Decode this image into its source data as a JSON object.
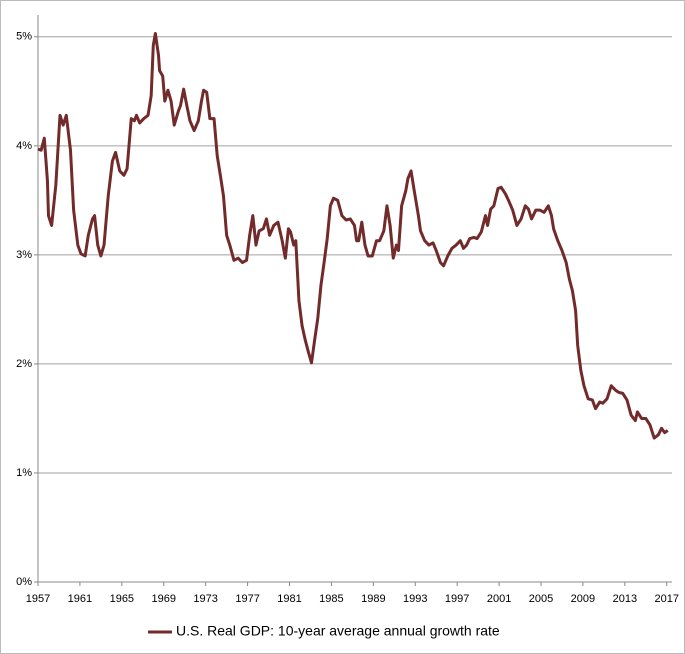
{
  "chart_data": {
    "type": "line",
    "x": [
      1957.0,
      1957.3,
      1957.6,
      1957.9,
      1958.0,
      1958.3,
      1958.7,
      1959.1,
      1959.4,
      1959.7,
      1960.1,
      1960.4,
      1960.8,
      1961.1,
      1961.5,
      1961.8,
      1962.2,
      1962.4,
      1962.7,
      1963.0,
      1963.3,
      1963.7,
      1964.1,
      1964.4,
      1964.8,
      1965.2,
      1965.5,
      1965.9,
      1966.2,
      1966.4,
      1966.7,
      1967.1,
      1967.5,
      1967.8,
      1968.0,
      1968.2,
      1968.5,
      1968.6,
      1968.9,
      1969.1,
      1969.4,
      1969.7,
      1970.0,
      1970.4,
      1970.6,
      1970.9,
      1971.2,
      1971.5,
      1971.9,
      1972.3,
      1972.6,
      1972.8,
      1973.1,
      1973.4,
      1973.8,
      1974.1,
      1974.4,
      1974.7,
      1975.0,
      1975.3,
      1975.7,
      1976.1,
      1976.5,
      1976.9,
      1977.2,
      1977.5,
      1977.8,
      1978.1,
      1978.5,
      1978.8,
      1979.1,
      1979.5,
      1979.9,
      1980.3,
      1980.6,
      1980.9,
      1981.1,
      1981.4,
      1981.6,
      1981.9,
      1982.2,
      1982.5,
      1982.8,
      1983.1,
      1983.4,
      1983.7,
      1984.0,
      1984.3,
      1984.6,
      1984.9,
      1985.2,
      1985.6,
      1986.0,
      1986.4,
      1986.8,
      1987.2,
      1987.4,
      1987.6,
      1987.9,
      1988.2,
      1988.5,
      1988.9,
      1989.3,
      1989.6,
      1990.0,
      1990.3,
      1990.6,
      1990.9,
      1991.2,
      1991.4,
      1991.7,
      1992.1,
      1992.3,
      1992.6,
      1992.9,
      1993.3,
      1993.5,
      1993.9,
      1994.3,
      1994.7,
      1995.0,
      1995.4,
      1995.7,
      1996.1,
      1996.5,
      1996.9,
      1997.3,
      1997.6,
      1997.9,
      1998.2,
      1998.6,
      1998.9,
      1999.3,
      1999.7,
      1999.9,
      2000.2,
      2000.5,
      2000.9,
      2001.2,
      2001.6,
      2001.9,
      2002.3,
      2002.7,
      2003.1,
      2003.5,
      2003.8,
      2004.1,
      2004.5,
      2004.9,
      2005.3,
      2005.7,
      2006.0,
      2006.2,
      2006.6,
      2007.0,
      2007.4,
      2007.7,
      2008.0,
      2008.3,
      2008.5,
      2008.8,
      2009.1,
      2009.5,
      2009.9,
      2010.2,
      2010.6,
      2010.9,
      2011.3,
      2011.7,
      2012.1,
      2012.4,
      2012.8,
      2013.2,
      2013.6,
      2014.0,
      2014.2,
      2014.6,
      2015.0,
      2015.4,
      2015.8,
      2016.2,
      2016.5,
      2016.8,
      2017.1
    ],
    "series": [
      {
        "name": "U.S. Real GDP: 10-year average annual growth rate",
        "color": "#722a2a",
        "values": [
          3.97,
          3.96,
          4.07,
          3.68,
          3.36,
          3.27,
          3.64,
          4.28,
          4.19,
          4.28,
          3.96,
          3.41,
          3.09,
          3.01,
          2.99,
          3.18,
          3.33,
          3.36,
          3.09,
          2.99,
          3.09,
          3.54,
          3.86,
          3.94,
          3.77,
          3.73,
          3.79,
          4.25,
          4.23,
          4.28,
          4.21,
          4.25,
          4.28,
          4.46,
          4.92,
          5.03,
          4.83,
          4.69,
          4.64,
          4.41,
          4.51,
          4.41,
          4.19,
          4.32,
          4.37,
          4.52,
          4.37,
          4.23,
          4.14,
          4.23,
          4.41,
          4.51,
          4.49,
          4.25,
          4.25,
          3.91,
          3.73,
          3.54,
          3.18,
          3.09,
          2.95,
          2.97,
          2.93,
          2.95,
          3.18,
          3.36,
          3.09,
          3.22,
          3.24,
          3.33,
          3.18,
          3.27,
          3.3,
          3.13,
          2.97,
          3.24,
          3.21,
          3.09,
          3.13,
          2.58,
          2.35,
          2.22,
          2.11,
          2.01,
          2.22,
          2.42,
          2.72,
          2.93,
          3.15,
          3.45,
          3.52,
          3.5,
          3.36,
          3.32,
          3.33,
          3.27,
          3.13,
          3.13,
          3.3,
          3.09,
          2.99,
          2.99,
          3.13,
          3.13,
          3.22,
          3.45,
          3.27,
          2.97,
          3.09,
          3.04,
          3.45,
          3.59,
          3.7,
          3.77,
          3.59,
          3.36,
          3.22,
          3.13,
          3.09,
          3.11,
          3.04,
          2.93,
          2.9,
          2.99,
          3.06,
          3.09,
          3.13,
          3.06,
          3.09,
          3.15,
          3.16,
          3.15,
          3.21,
          3.36,
          3.27,
          3.42,
          3.45,
          3.61,
          3.62,
          3.56,
          3.5,
          3.41,
          3.27,
          3.33,
          3.45,
          3.42,
          3.33,
          3.41,
          3.41,
          3.39,
          3.45,
          3.36,
          3.24,
          3.13,
          3.04,
          2.93,
          2.78,
          2.67,
          2.49,
          2.17,
          1.94,
          1.8,
          1.68,
          1.67,
          1.59,
          1.65,
          1.64,
          1.68,
          1.8,
          1.76,
          1.74,
          1.73,
          1.67,
          1.53,
          1.48,
          1.56,
          1.5,
          1.5,
          1.44,
          1.32,
          1.35,
          1.41,
          1.37,
          1.39
        ]
      }
    ],
    "xlim": [
      1957,
      2017.5
    ],
    "xticks": [
      1957,
      1961,
      1965,
      1969,
      1973,
      1977,
      1981,
      1985,
      1989,
      1993,
      1997,
      2001,
      2005,
      2009,
      2013,
      2017
    ],
    "ylim": [
      0,
      5.2
    ],
    "yticks": [
      {
        "value": 0,
        "label": "0%"
      },
      {
        "value": 1,
        "label": "1%"
      },
      {
        "value": 2,
        "label": "2%"
      },
      {
        "value": 3,
        "label": "3%"
      },
      {
        "value": 4,
        "label": "4%"
      },
      {
        "value": 5,
        "label": "5%"
      }
    ],
    "grid": true,
    "legend": "bottom"
  }
}
